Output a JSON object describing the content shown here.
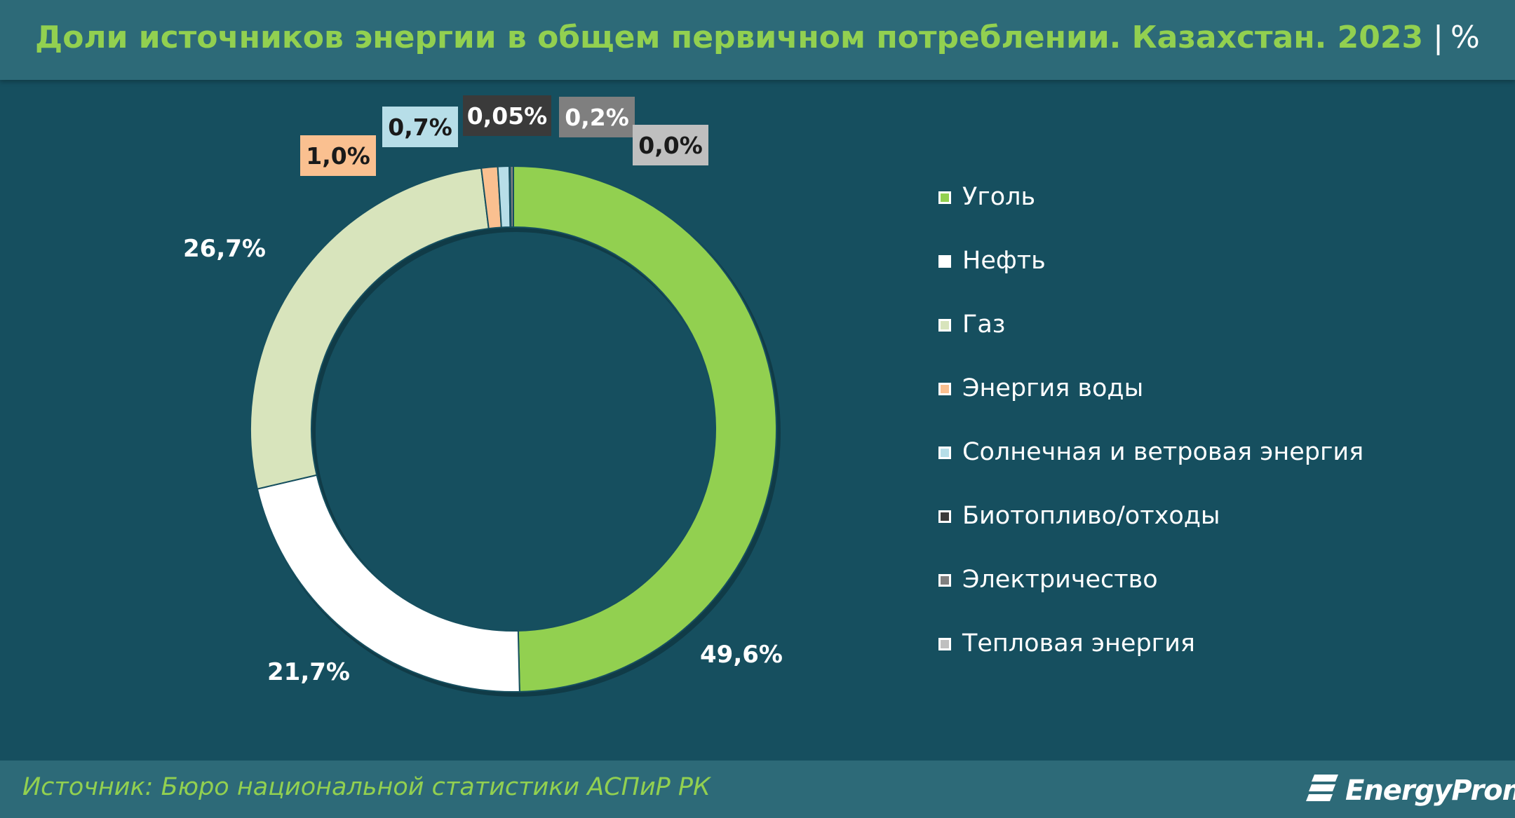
{
  "header": {
    "title": "Доли источников энергии в общем первичном потреблении. Казахстан. 2023",
    "separator": "|",
    "unit": "%"
  },
  "chart_data": {
    "type": "pie",
    "variant": "donut",
    "categories": [
      "Уголь",
      "Нефть",
      "Газ",
      "Энергия воды",
      "Солнечная и ветровая энергия",
      "Биотопливо/отходы",
      "Электричество",
      "Тепловая энергия"
    ],
    "values": [
      49.6,
      21.7,
      26.7,
      1.0,
      0.7,
      0.05,
      0.2,
      0.0
    ],
    "labels": [
      "49,6%",
      "21,7%",
      "26,7%",
      "1,0%",
      "0,7%",
      "0,05%",
      "0,2%",
      "0,0%"
    ],
    "colors": [
      "#92d050",
      "#ffffff",
      "#d8e4bc",
      "#fac090",
      "#b7dee8",
      "#3a3a3a",
      "#7f7f7f",
      "#bfbfbf"
    ],
    "legend_position": "right"
  },
  "footer": {
    "source": "Источник: Бюро национальной статистики АСПиР РК",
    "brand": "EnergyProm"
  }
}
